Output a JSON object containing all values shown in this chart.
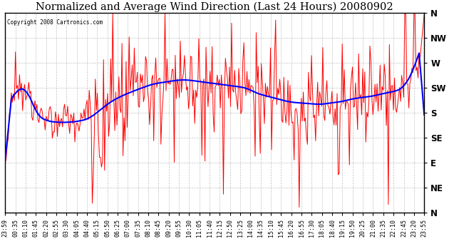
{
  "title": "Normalized and Average Wind Direction (Last 24 Hours) 20080902",
  "copyright": "Copyright 2008 Cartronics.com",
  "yticks_labels": [
    "N",
    "NW",
    "W",
    "SW",
    "S",
    "SE",
    "E",
    "NE",
    "N"
  ],
  "yticks_values": [
    360,
    315,
    270,
    225,
    180,
    135,
    90,
    45,
    0
  ],
  "ylim": [
    0,
    360
  ],
  "background_color": "#ffffff",
  "plot_bg_color": "#ffffff",
  "grid_color": "#bbbbbb",
  "red_color": "#ff0000",
  "blue_color": "#0000ff",
  "title_fontsize": 10.5,
  "xtick_fontsize": 6,
  "ytick_fontsize": 8.5,
  "xtick_labels": [
    "23:59",
    "00:35",
    "01:10",
    "01:45",
    "02:20",
    "02:55",
    "03:30",
    "04:05",
    "04:40",
    "05:15",
    "05:50",
    "06:25",
    "07:00",
    "07:35",
    "08:10",
    "08:45",
    "09:20",
    "09:55",
    "10:30",
    "11:05",
    "11:40",
    "12:15",
    "12:50",
    "13:25",
    "14:00",
    "14:35",
    "15:10",
    "15:45",
    "16:20",
    "16:55",
    "17:30",
    "18:05",
    "18:40",
    "19:15",
    "19:50",
    "20:25",
    "21:00",
    "21:35",
    "22:10",
    "22:45",
    "23:20",
    "23:55"
  ]
}
